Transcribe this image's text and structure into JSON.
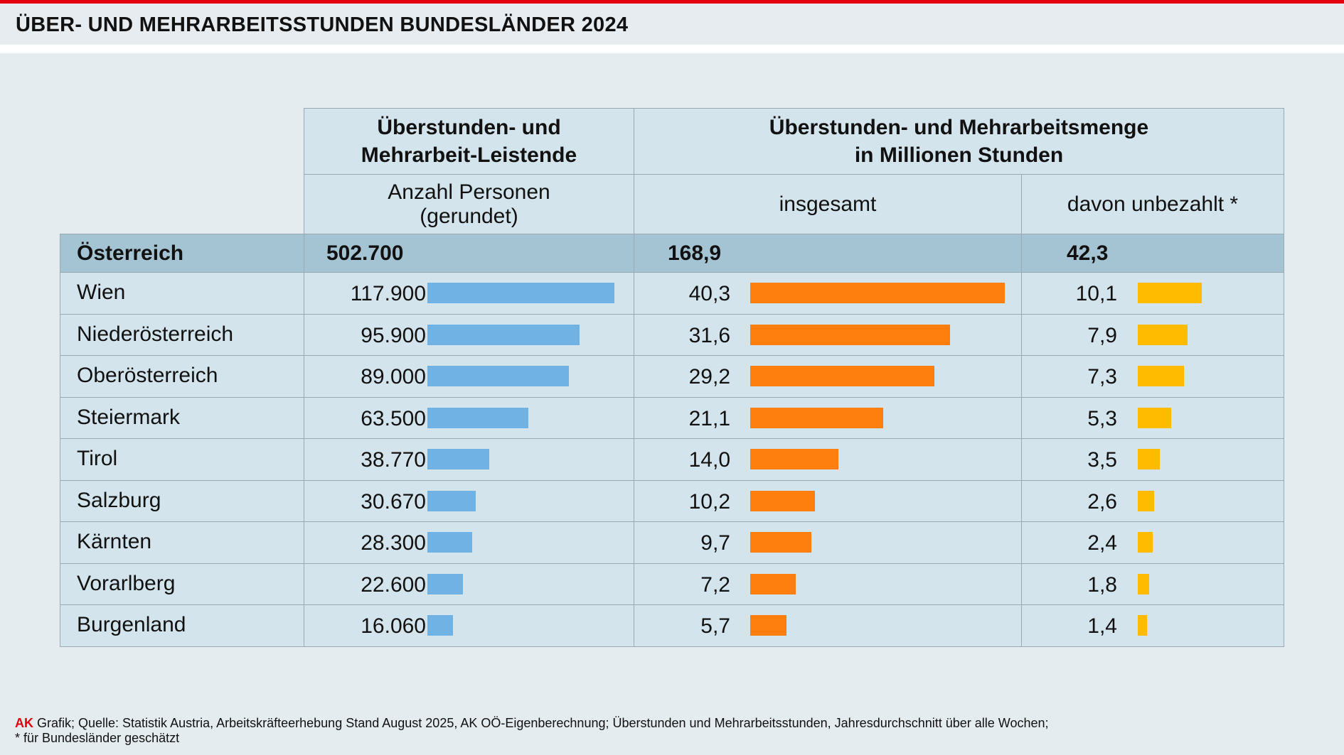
{
  "title": "ÜBER- UND MEHRARBEITSSTUNDEN BUNDESLÄNDER 2024",
  "colors": {
    "accent": "#e3000f",
    "persons_bar": "#70b2e3",
    "total_bar": "#ff7f0e",
    "unpaid_bar": "#ffbb00",
    "total_row": "#a5c4d3",
    "cell": "#d3e4ec"
  },
  "header": {
    "group1": "Überstunden- und Mehrarbeit-Leistende",
    "group2_line1": "Überstunden- und Mehrarbeitsmenge",
    "group2_line2": "in Millionen Stunden",
    "col1_line1": "Anzahl Personen",
    "col1_line2": "(gerundet)",
    "col2": "insgesamt",
    "col3": "davon unbezahlt *"
  },
  "chart_data": {
    "type": "table",
    "total": {
      "region": "Österreich",
      "persons": "502.700",
      "hours_total": "168,9",
      "hours_unpaid": "42,3"
    },
    "rows": [
      {
        "region": "Wien",
        "persons": "117.900",
        "persons_value": 117900,
        "hours_total": "40,3",
        "total_value": 40.3,
        "hours_unpaid": "10,1",
        "unpaid_value": 10.1
      },
      {
        "region": "Niederösterreich",
        "persons": "95.900",
        "persons_value": 95900,
        "hours_total": "31,6",
        "total_value": 31.6,
        "hours_unpaid": "7,9",
        "unpaid_value": 7.9
      },
      {
        "region": "Oberösterreich",
        "persons": "89.000",
        "persons_value": 89000,
        "hours_total": "29,2",
        "total_value": 29.2,
        "hours_unpaid": "7,3",
        "unpaid_value": 7.3
      },
      {
        "region": "Steiermark",
        "persons": "63.500",
        "persons_value": 63500,
        "hours_total": "21,1",
        "total_value": 21.1,
        "hours_unpaid": "5,3",
        "unpaid_value": 5.3
      },
      {
        "region": "Tirol",
        "persons": "38.770",
        "persons_value": 38770,
        "hours_total": "14,0",
        "total_value": 14.0,
        "hours_unpaid": "3,5",
        "unpaid_value": 3.5
      },
      {
        "region": "Salzburg",
        "persons": "30.670",
        "persons_value": 30670,
        "hours_total": "10,2",
        "total_value": 10.2,
        "hours_unpaid": "2,6",
        "unpaid_value": 2.6
      },
      {
        "region": "Kärnten",
        "persons": "28.300",
        "persons_value": 28300,
        "hours_total": "9,7",
        "total_value": 9.7,
        "hours_unpaid": "2,4",
        "unpaid_value": 2.4
      },
      {
        "region": "Vorarlberg",
        "persons": "22.600",
        "persons_value": 22600,
        "hours_total": "7,2",
        "total_value": 7.2,
        "hours_unpaid": "1,8",
        "unpaid_value": 1.8
      },
      {
        "region": "Burgenland",
        "persons": "16.060",
        "persons_value": 16060,
        "hours_total": "5,7",
        "total_value": 5.7,
        "hours_unpaid": "1,4",
        "unpaid_value": 1.4
      }
    ]
  },
  "footer": {
    "brand": "AK",
    "line1": " Grafik;  Quelle: Statistik Austria, Arbeitskräfteerhebung Stand August 2025, AK OÖ-Eigenberechnung; Überstunden und Mehrarbeitsstunden, Jahresdurchschnitt über alle Wochen;",
    "line2": "* für Bundesländer geschätzt"
  }
}
